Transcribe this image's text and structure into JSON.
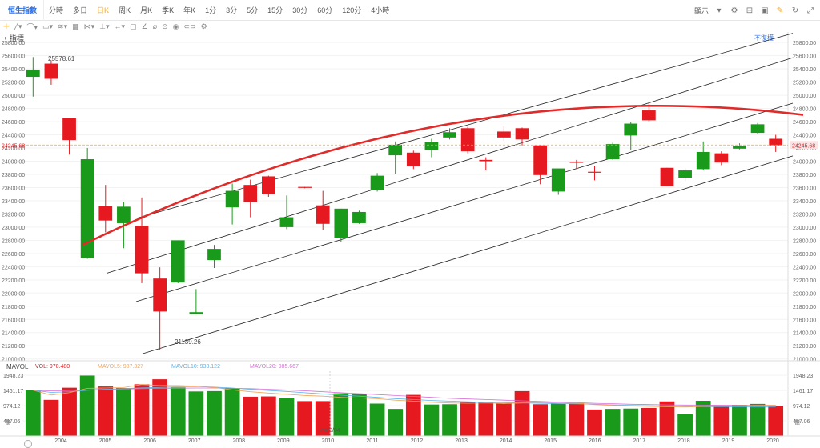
{
  "header": {
    "symbol": "恒生指數",
    "periods": [
      "分時",
      "多日",
      "日K",
      "周K",
      "月K",
      "季K",
      "年K",
      "1分",
      "3分",
      "5分",
      "15分",
      "30分",
      "60分",
      "120分",
      "4小時"
    ],
    "active_period": 2,
    "display_label": "顯示"
  },
  "indicator_label": "指標",
  "adjust_label": "不復權",
  "volume_legend": {
    "name": "MAVOL",
    "vol": "VOL: 970.480",
    "ma5": "MAVOL5: 987.327",
    "ma10": "MAVOL10: 933.122",
    "ma20": "MAVOL20: 985.667",
    "unit": "億"
  },
  "colors": {
    "up": "#1a9a1a",
    "down": "#e5191f",
    "arc": "#e02b2b",
    "ma5": "#f2a65a",
    "ma10": "#5bb5e8",
    "ma20": "#d86fd8",
    "price_line": "#f5a623"
  },
  "chart_data": {
    "type": "candlestick",
    "x_ticks": [
      "2004",
      "2005",
      "2006",
      "2007",
      "2008",
      "2009",
      "2010",
      "2011",
      "2012",
      "2013",
      "2014",
      "2015",
      "2016",
      "2017",
      "2018",
      "2019",
      "2020"
    ],
    "x_marker": "2020/04",
    "y_ticks": [
      "25800.00",
      "25600.00",
      "25400.00",
      "25200.00",
      "25000.00",
      "24800.00",
      "24600.00",
      "24400.00",
      "24200.00",
      "24000.00",
      "23800.00",
      "23600.00",
      "23400.00",
      "23200.00",
      "23000.00",
      "22800.00",
      "22600.00",
      "22400.00",
      "22200.00",
      "22000.00",
      "21800.00",
      "21600.00",
      "21400.00",
      "21200.00",
      "21000.00"
    ],
    "ylim": [
      20960,
      25960
    ],
    "current_price": 24245.68,
    "current_price_label": "24245.68",
    "annotations": {
      "high": "25578.61",
      "low": "21139.26"
    },
    "candles": [
      {
        "o": 25280,
        "c": 25390,
        "h": 25580,
        "l": 24980,
        "up": true
      },
      {
        "o": 25480,
        "c": 25250,
        "h": 25530,
        "l": 25160,
        "up": false
      },
      {
        "o": 24650,
        "c": 24320,
        "h": 24650,
        "l": 24100,
        "up": false
      },
      {
        "o": 22530,
        "c": 24030,
        "h": 24200,
        "l": 22520,
        "up": true
      },
      {
        "o": 23320,
        "c": 23100,
        "h": 23640,
        "l": 22920,
        "up": false
      },
      {
        "o": 23060,
        "c": 23310,
        "h": 23380,
        "l": 22680,
        "up": true
      },
      {
        "o": 23020,
        "c": 22300,
        "h": 23450,
        "l": 22150,
        "up": false
      },
      {
        "o": 22220,
        "c": 21720,
        "h": 22390,
        "l": 21140,
        "up": false
      },
      {
        "o": 22160,
        "c": 22800,
        "h": 22800,
        "l": 22150,
        "up": true
      },
      {
        "o": 21680,
        "c": 21710,
        "h": 22060,
        "l": 21680,
        "up": true
      },
      {
        "o": 22500,
        "c": 22670,
        "h": 22730,
        "l": 22380,
        "up": true
      },
      {
        "o": 23300,
        "c": 23550,
        "h": 23660,
        "l": 23040,
        "up": true
      },
      {
        "o": 23640,
        "c": 23380,
        "h": 23720,
        "l": 23150,
        "up": false
      },
      {
        "o": 23770,
        "c": 23500,
        "h": 23780,
        "l": 23460,
        "up": false
      },
      {
        "o": 23000,
        "c": 23150,
        "h": 23480,
        "l": 22970,
        "up": true
      },
      {
        "o": 23610,
        "c": 23600,
        "h": 23610,
        "l": 23590,
        "up": false
      },
      {
        "o": 23330,
        "c": 23050,
        "h": 23550,
        "l": 22960,
        "up": false
      },
      {
        "o": 22840,
        "c": 23280,
        "h": 23280,
        "l": 22780,
        "up": true
      },
      {
        "o": 23060,
        "c": 23230,
        "h": 23250,
        "l": 23050,
        "up": true
      },
      {
        "o": 23560,
        "c": 23780,
        "h": 23820,
        "l": 23540,
        "up": true
      },
      {
        "o": 24090,
        "c": 24250,
        "h": 24300,
        "l": 23800,
        "up": true
      },
      {
        "o": 24130,
        "c": 23920,
        "h": 24160,
        "l": 23880,
        "up": false
      },
      {
        "o": 24170,
        "c": 24290,
        "h": 24340,
        "l": 24060,
        "up": true
      },
      {
        "o": 24360,
        "c": 24440,
        "h": 24500,
        "l": 24330,
        "up": true
      },
      {
        "o": 24500,
        "c": 24150,
        "h": 24520,
        "l": 24120,
        "up": false
      },
      {
        "o": 24020,
        "c": 24000,
        "h": 24060,
        "l": 23860,
        "up": false
      },
      {
        "o": 24450,
        "c": 24360,
        "h": 24530,
        "l": 24310,
        "up": false
      },
      {
        "o": 24500,
        "c": 24330,
        "h": 24510,
        "l": 24240,
        "up": false
      },
      {
        "o": 24240,
        "c": 23790,
        "h": 24240,
        "l": 23650,
        "up": false
      },
      {
        "o": 23540,
        "c": 23890,
        "h": 23890,
        "l": 23490,
        "up": true
      },
      {
        "o": 23990,
        "c": 23980,
        "h": 24020,
        "l": 23880,
        "up": false
      },
      {
        "o": 23840,
        "c": 23830,
        "h": 23930,
        "l": 23710,
        "up": false
      },
      {
        "o": 24030,
        "c": 24260,
        "h": 24280,
        "l": 24020,
        "up": true
      },
      {
        "o": 24390,
        "c": 24570,
        "h": 24600,
        "l": 24170,
        "up": true
      },
      {
        "o": 24770,
        "c": 24620,
        "h": 24880,
        "l": 24600,
        "up": false
      },
      {
        "o": 23900,
        "c": 23620,
        "h": 23900,
        "l": 23620,
        "up": false
      },
      {
        "o": 23750,
        "c": 23860,
        "h": 23890,
        "l": 23700,
        "up": true
      },
      {
        "o": 23880,
        "c": 24140,
        "h": 24300,
        "l": 23860,
        "up": true
      },
      {
        "o": 24120,
        "c": 23980,
        "h": 24150,
        "l": 23940,
        "up": false
      },
      {
        "o": 24190,
        "c": 24230,
        "h": 24270,
        "l": 24180,
        "up": true
      },
      {
        "o": 24430,
        "c": 24560,
        "h": 24580,
        "l": 24420,
        "up": true
      },
      {
        "o": 24340,
        "c": 24240,
        "h": 24400,
        "l": 24140,
        "up": false
      }
    ],
    "volume_ticks": [
      "1948.23",
      "1461.17",
      "974.12",
      "487.06"
    ],
    "volume_max": 2080,
    "volumes": [
      1470,
      1160,
      1550,
      1940,
      1590,
      1540,
      1660,
      1820,
      1560,
      1430,
      1440,
      1540,
      1260,
      1270,
      1230,
      1120,
      1120,
      1370,
      1340,
      1040,
      870,
      1320,
      1010,
      1020,
      1090,
      1080,
      1040,
      1440,
      1020,
      1040,
      1050,
      850,
      870,
      880,
      900,
      1110,
      700,
      1130,
      980,
      1000,
      1030,
      970
    ],
    "ma5": [
      1470,
      1315,
      1390,
      1530,
      1540,
      1556,
      1650,
      1620,
      1620,
      1600,
      1560,
      1480,
      1420,
      1380,
      1340,
      1300,
      1280,
      1240,
      1220,
      1200,
      1150,
      1120,
      1080,
      1060,
      1050,
      1060,
      1040,
      1060,
      1070,
      1060,
      1050,
      1010,
      980,
      960,
      950,
      940,
      930,
      950,
      960,
      970,
      980,
      987
    ],
    "ma10": [
      1470,
      1400,
      1420,
      1470,
      1500,
      1520,
      1545,
      1560,
      1580,
      1590,
      1570,
      1540,
      1500,
      1460,
      1430,
      1390,
      1350,
      1310,
      1280,
      1240,
      1200,
      1170,
      1140,
      1120,
      1100,
      1080,
      1070,
      1060,
      1050,
      1040,
      1030,
      1020,
      1000,
      980,
      970,
      960,
      950,
      945,
      940,
      935,
      933,
      933
    ],
    "ma20": [
      1470,
      1450,
      1460,
      1480,
      1500,
      1510,
      1520,
      1530,
      1535,
      1540,
      1540,
      1530,
      1520,
      1500,
      1480,
      1450,
      1420,
      1390,
      1360,
      1330,
      1300,
      1270,
      1240,
      1210,
      1190,
      1170,
      1150,
      1130,
      1110,
      1090,
      1070,
      1050,
      1035,
      1020,
      1010,
      1000,
      995,
      990,
      988,
      986,
      985,
      985
    ]
  }
}
